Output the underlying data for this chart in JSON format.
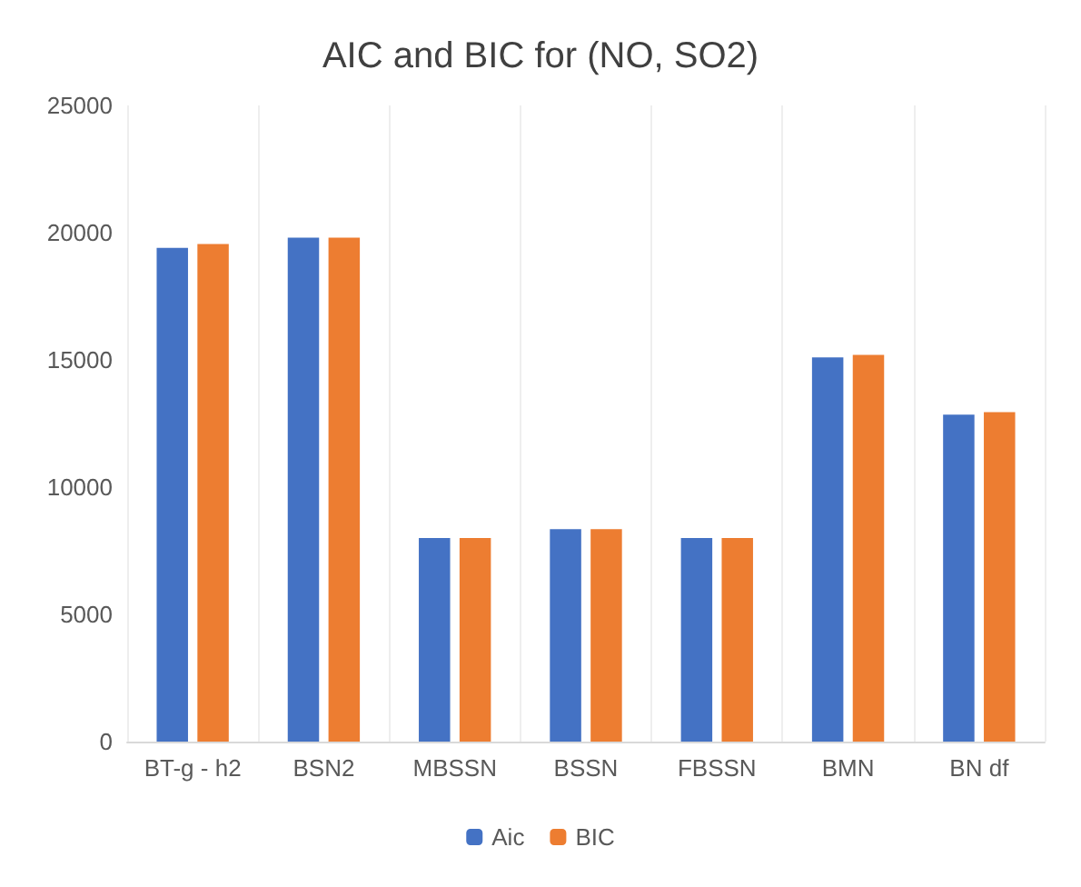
{
  "chart_data": {
    "type": "bar",
    "title": "AIC and BIC for (NO, SO2)",
    "categories": [
      "BT-g - h2",
      "BSN2",
      "MBSSN",
      "BSSN",
      "FBSSN",
      "BMN",
      "BN df"
    ],
    "series": [
      {
        "name": "Aic",
        "color": "#4472c4",
        "values": [
          19400,
          19800,
          8000,
          8350,
          8000,
          15100,
          12850
        ]
      },
      {
        "name": "BIC",
        "color": "#ed7d31",
        "values": [
          19550,
          19800,
          8000,
          8350,
          8000,
          15200,
          12950
        ]
      }
    ],
    "ylim": [
      0,
      25000
    ],
    "yticks": [
      0,
      5000,
      10000,
      15000,
      20000,
      25000
    ],
    "grid": "x",
    "legend": "bottom"
  }
}
